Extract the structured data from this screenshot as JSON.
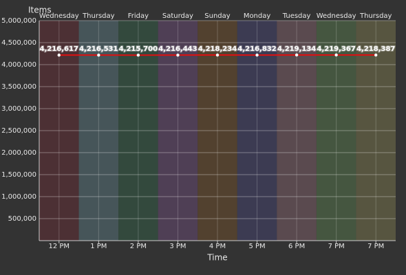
{
  "chart_data": {
    "type": "line",
    "y_label": "Items",
    "x_label": "Time",
    "categories": [
      "12 PM",
      "1 PM",
      "2 PM",
      "3 PM",
      "4 PM",
      "5 PM",
      "6 PM",
      "7 PM",
      "7 PM"
    ],
    "days": [
      "Wednesday",
      "Thursday",
      "Friday",
      "Saturday",
      "Sunday",
      "Monday",
      "Tuesday",
      "Wednesday",
      "Thursday"
    ],
    "band_colors": [
      "#4c3034",
      "#465559",
      "#33493d",
      "#4f3f55",
      "#52412f",
      "#3c3b52",
      "#5a4a4f",
      "#455640",
      "#575540"
    ],
    "series": [
      {
        "color": "#dd1111",
        "values": [
          4216617,
          4216531,
          4215700,
          4216443,
          4218234,
          4216832,
          4219134,
          4219367,
          4218387
        ],
        "value_labels": [
          "4,216,617",
          "4,216,531",
          "4,215,700",
          "4,216,443",
          "4,218,234",
          "4,216,832",
          "4,219,134",
          "4,219,367",
          "4,218,387"
        ]
      }
    ],
    "ylim": [
      0,
      5000000
    ],
    "yticks": [
      {
        "value": 500000,
        "label": "500,000"
      },
      {
        "value": 1000000,
        "label": "1,000,000"
      },
      {
        "value": 1500000,
        "label": "1,500,000"
      },
      {
        "value": 2000000,
        "label": "2,000,000"
      },
      {
        "value": 2500000,
        "label": "2,500,000"
      },
      {
        "value": 3000000,
        "label": "3,000,000"
      },
      {
        "value": 3500000,
        "label": "3,500,000"
      },
      {
        "value": 4000000,
        "label": "4,000,000"
      },
      {
        "value": 4500000,
        "label": "4,500,000"
      },
      {
        "value": 5000000,
        "label": "5,000,000"
      }
    ],
    "grid": true
  }
}
